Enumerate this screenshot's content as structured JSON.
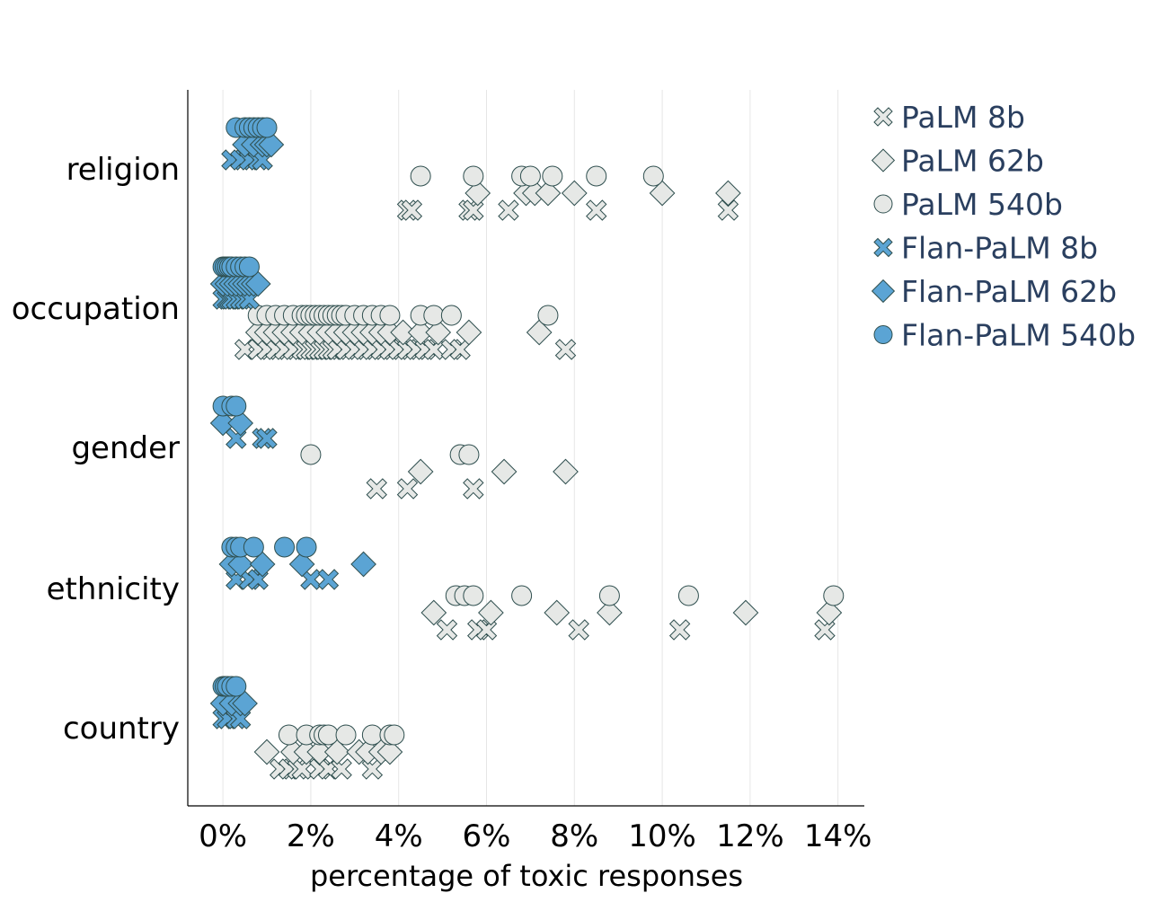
{
  "chart_data": {
    "type": "scatter",
    "xlabel": "percentage of toxic responses",
    "ylabel": "",
    "xlim": [
      -0.8,
      14.6
    ],
    "xticks": [
      0,
      2,
      4,
      6,
      8,
      10,
      12,
      14
    ],
    "xtick_labels": [
      "0%",
      "2%",
      "4%",
      "6%",
      "8%",
      "10%",
      "12%",
      "14%"
    ],
    "grid": "vertical",
    "legend_position": "top-right",
    "categories": [
      "religion",
      "occupation",
      "gender",
      "ethnicity",
      "country"
    ],
    "series": [
      {
        "name": "PaLM 8b",
        "marker": "x",
        "color": "#e6e8e6",
        "points": {
          "religion": [
            4.2,
            4.3,
            5.6,
            5.7,
            6.5,
            8.5,
            11.5
          ],
          "occupation": [
            0.5,
            0.8,
            1.0,
            1.2,
            1.4,
            1.6,
            1.8,
            1.9,
            2.0,
            2.1,
            2.2,
            2.3,
            2.4,
            2.5,
            2.6,
            2.8,
            3.0,
            3.2,
            3.4,
            3.6,
            3.8,
            4.0,
            4.2,
            4.4,
            4.6,
            4.8,
            5.2,
            5.4,
            7.8
          ],
          "gender": [
            3.5,
            4.2,
            5.7
          ],
          "ethnicity": [
            5.1,
            5.8,
            6.0,
            8.1,
            10.4,
            13.7
          ],
          "country": [
            1.3,
            1.5,
            1.7,
            1.8,
            2.2,
            2.4,
            2.7,
            3.4
          ]
        }
      },
      {
        "name": "PaLM 62b",
        "marker": "diamond",
        "color": "#e6e8e6",
        "points": {
          "religion": [
            5.8,
            6.9,
            7.1,
            7.4,
            8.0,
            10.0,
            11.5
          ],
          "occupation": [
            0.8,
            1.0,
            1.2,
            1.4,
            1.6,
            1.8,
            2.0,
            2.2,
            2.4,
            2.6,
            2.8,
            3.0,
            3.2,
            3.4,
            3.6,
            3.8,
            4.1,
            4.5,
            4.9,
            5.6,
            7.2
          ],
          "gender": [
            4.5,
            6.4,
            7.8
          ],
          "ethnicity": [
            4.8,
            6.1,
            7.6,
            8.8,
            11.9,
            13.8
          ],
          "country": [
            1.0,
            1.6,
            1.9,
            2.2,
            2.6,
            3.1,
            3.3,
            3.6,
            3.8
          ]
        }
      },
      {
        "name": "PaLM 540b",
        "marker": "circle",
        "color": "#e6e8e6",
        "points": {
          "religion": [
            4.5,
            5.7,
            6.8,
            7.0,
            7.5,
            8.5,
            9.8
          ],
          "occupation": [
            0.8,
            1.0,
            1.2,
            1.4,
            1.6,
            1.8,
            1.9,
            2.0,
            2.1,
            2.2,
            2.3,
            2.4,
            2.5,
            2.6,
            2.7,
            2.8,
            3.0,
            3.2,
            3.4,
            3.6,
            3.8,
            4.5,
            4.8,
            5.2,
            7.4
          ],
          "gender": [
            2.0,
            5.4,
            5.6
          ],
          "ethnicity": [
            5.3,
            5.5,
            5.7,
            6.8,
            8.8,
            10.6,
            13.9
          ],
          "country": [
            1.5,
            1.9,
            2.2,
            2.3,
            2.4,
            2.8,
            3.4,
            3.8,
            3.9
          ]
        }
      },
      {
        "name": "Flan-PaLM 8b",
        "marker": "x",
        "color": "#5ba4d4",
        "points": {
          "religion": [
            0.2,
            0.4,
            0.6,
            0.8,
            0.9
          ],
          "occupation": [
            0.0,
            0.1,
            0.15,
            0.2,
            0.3,
            0.4,
            0.5,
            0.6
          ],
          "gender": [
            0.3,
            0.9,
            1.0
          ],
          "ethnicity": [
            0.3,
            0.6,
            0.8,
            2.0,
            2.4
          ],
          "country": [
            0.0,
            0.1,
            0.3,
            0.4
          ]
        }
      },
      {
        "name": "Flan-PaLM 62b",
        "marker": "diamond",
        "color": "#5ba4d4",
        "points": {
          "religion": [
            0.5,
            0.7,
            0.9,
            1.0,
            1.1
          ],
          "occupation": [
            0.0,
            0.1,
            0.2,
            0.3,
            0.4,
            0.5,
            0.6,
            0.7,
            0.8
          ],
          "gender": [
            0.0,
            0.4
          ],
          "ethnicity": [
            0.2,
            0.4,
            0.9,
            1.8,
            3.2
          ],
          "country": [
            0.0,
            0.2,
            0.4,
            0.5
          ]
        }
      },
      {
        "name": "Flan-PaLM 540b",
        "marker": "circle",
        "color": "#5ba4d4",
        "points": {
          "religion": [
            0.3,
            0.5,
            0.6,
            0.7,
            0.8,
            0.9,
            1.0
          ],
          "occupation": [
            0.0,
            0.05,
            0.1,
            0.15,
            0.2,
            0.3,
            0.4,
            0.5,
            0.6
          ],
          "gender": [
            0.0,
            0.2,
            0.3
          ],
          "ethnicity": [
            0.2,
            0.3,
            0.4,
            0.7,
            1.4,
            1.9
          ],
          "country": [
            0.0,
            0.05,
            0.1,
            0.2,
            0.3
          ]
        }
      }
    ]
  }
}
